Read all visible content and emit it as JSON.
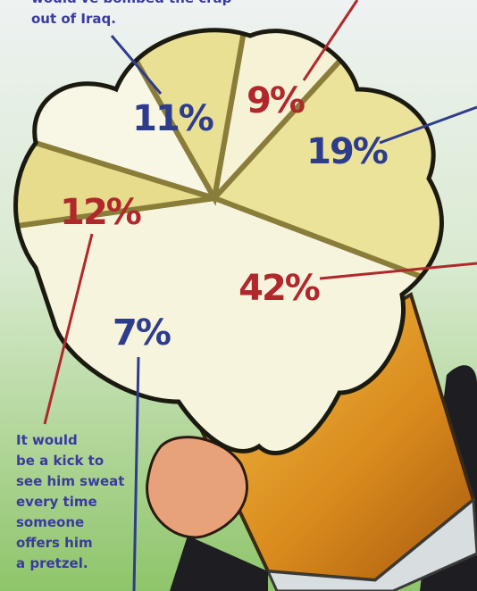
{
  "chart_data": {
    "type": "pie",
    "values": [
      9,
      19,
      42,
      7,
      12,
      11
    ],
    "value_labels": [
      "9%",
      "19%",
      "42%",
      "7%",
      "12%",
      "11%"
    ],
    "colors": [
      "#f6f2d6",
      "#ebe39a",
      "#f7f4de",
      "#e6dc8c",
      "#f8f6e4",
      "#e9e094"
    ],
    "label_colors": [
      "#b0282c",
      "#2e3c8e",
      "#b0282c",
      "#2e3c8e",
      "#b0282c",
      "#2e3c8e"
    ],
    "annotations": [
      {
        "lines": [
          "would've bombed the crap",
          "out of Iraq."
        ]
      },
      {
        "lines": [
          "It would",
          "be a kick to",
          "see him sweat",
          "every time",
          "someone",
          "offers him",
          "a pretzel."
        ]
      }
    ]
  }
}
